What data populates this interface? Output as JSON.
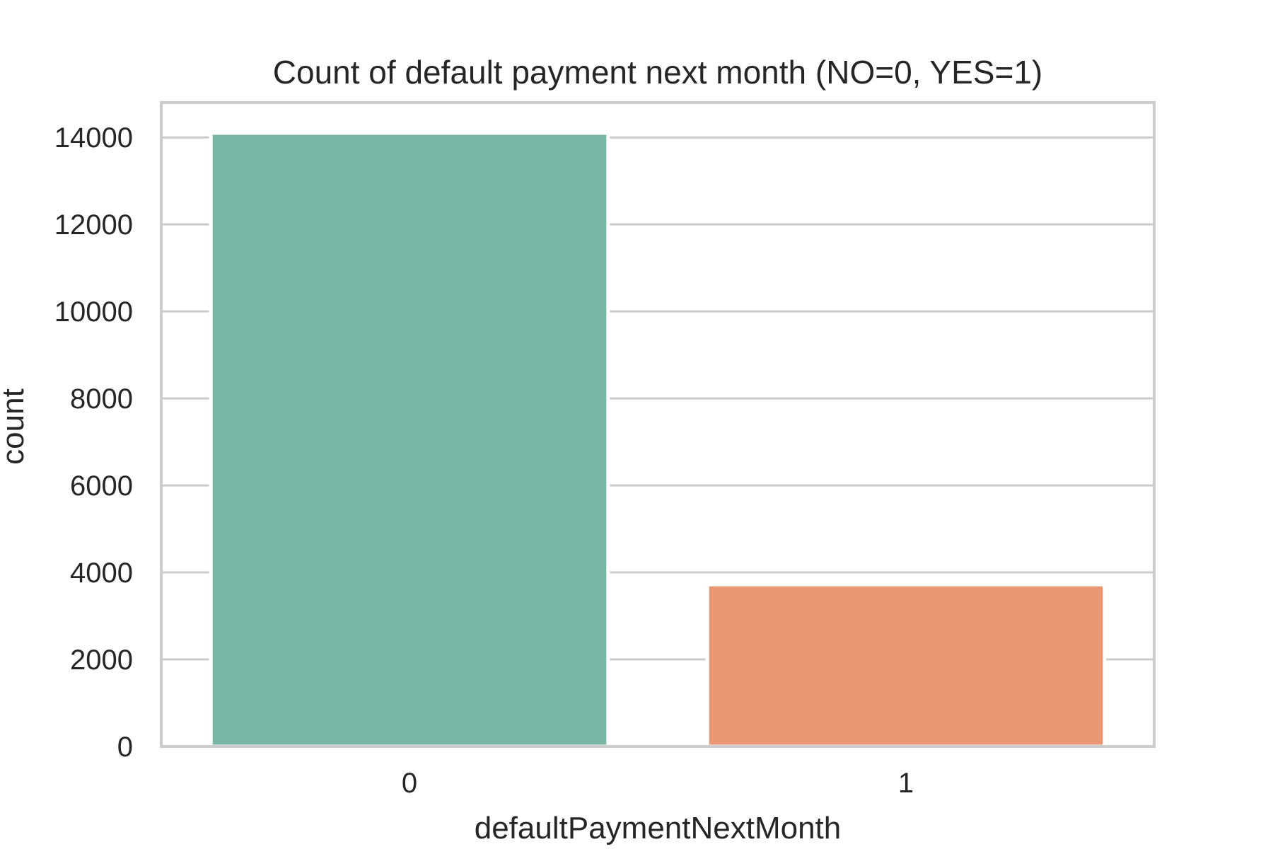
{
  "chart_data": {
    "type": "bar",
    "title": "Count of default payment next month (NO=0, YES=1)",
    "xlabel": "defaultPaymentNextMonth",
    "ylabel": "count",
    "categories": [
      "0",
      "1"
    ],
    "values": [
      14100,
      3720
    ],
    "bar_colors": [
      "#76b6a2",
      "#e99675"
    ],
    "ylim": [
      0,
      14800
    ],
    "yticks": [
      0,
      2000,
      4000,
      6000,
      8000,
      10000,
      12000,
      14000
    ],
    "grid": true,
    "grid_color": "#cccccc",
    "spine_color": "#cccccc",
    "text_color": "#262626"
  }
}
